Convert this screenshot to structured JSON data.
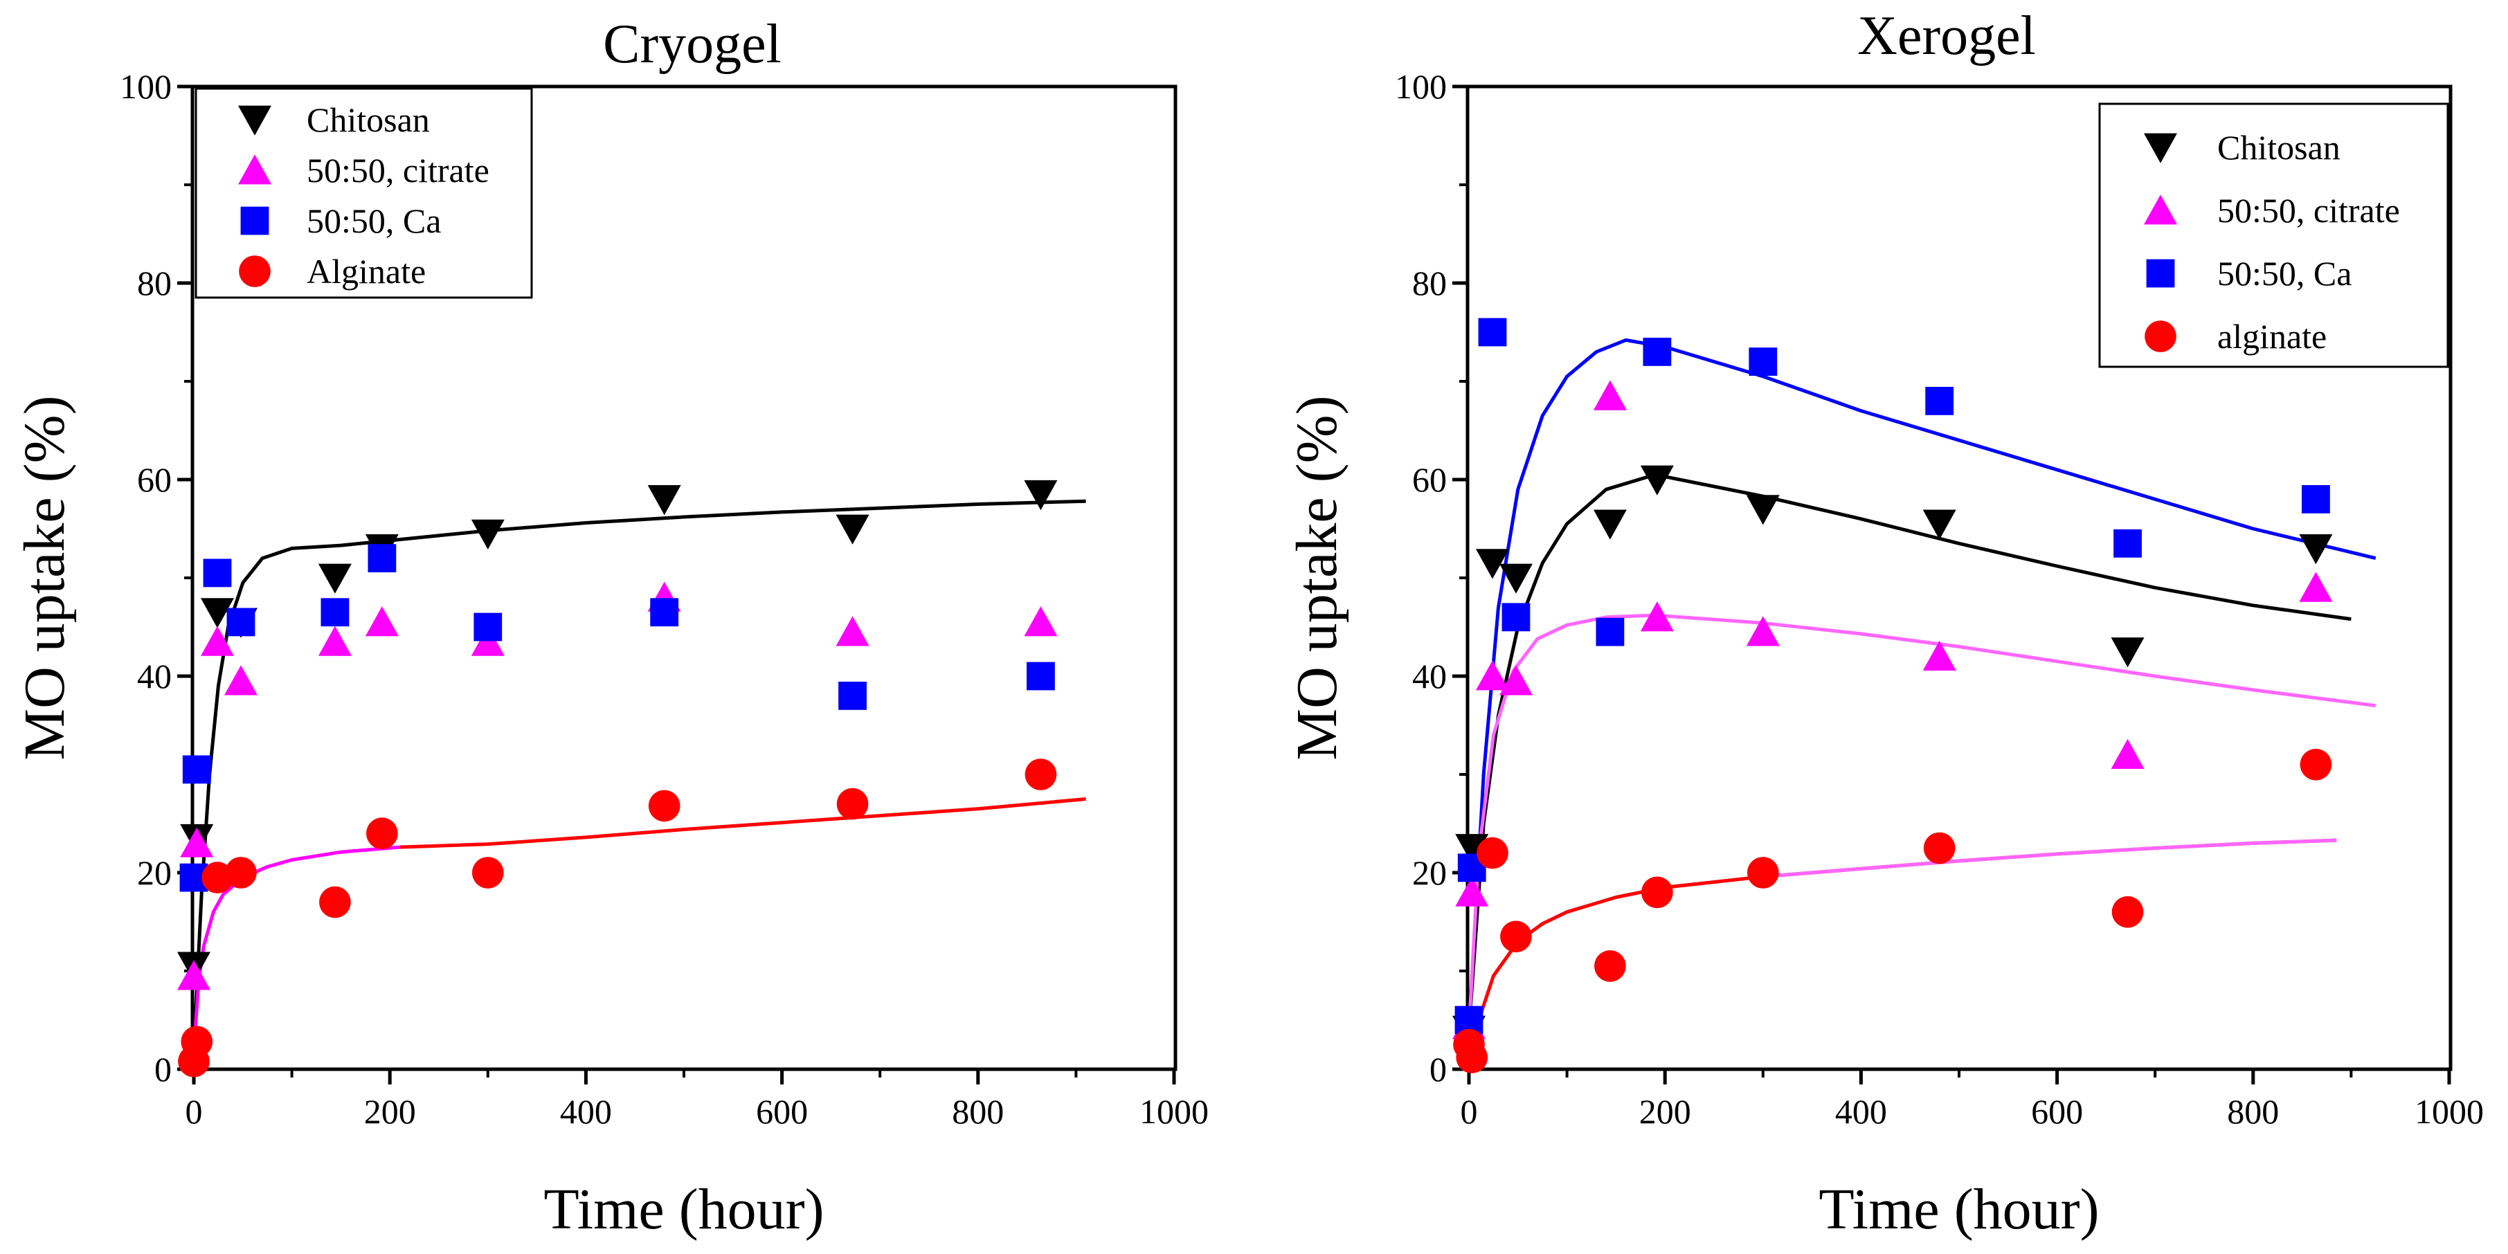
{
  "chart_data": [
    {
      "type": "scatter",
      "title": "Cryogel",
      "xlabel": "Time (hour)",
      "ylabel": "MO uptake (%)",
      "xlim": [
        0,
        1000
      ],
      "ylim": [
        0,
        100
      ],
      "xticks": [
        "0",
        "200",
        "400",
        "600",
        "800",
        "1000"
      ],
      "yticks": [
        "0",
        "20",
        "40",
        "60",
        "80",
        "100"
      ],
      "legend_position": "top-left",
      "series": [
        {
          "name": "Chitosan",
          "marker": "triangle-down",
          "color": "#000000",
          "x": [
            0,
            3,
            24,
            48,
            144,
            192,
            300,
            480,
            672,
            864
          ],
          "y": [
            10.5,
            23.5,
            46.5,
            45.5,
            50,
            53,
            54.5,
            58,
            55,
            58.5
          ]
        },
        {
          "name": "50:50, citrate",
          "marker": "triangle-up",
          "color": "#ff00ff",
          "x": [
            0,
            3,
            24,
            48,
            144,
            192,
            300,
            480,
            672,
            864
          ],
          "y": [
            9.5,
            23,
            43.5,
            39.5,
            43.5,
            45.5,
            43.5,
            48,
            44.5,
            45.5
          ]
        },
        {
          "name": "50:50, Ca",
          "marker": "square",
          "color": "#0000ff",
          "x": [
            0,
            3,
            24,
            48,
            144,
            192,
            300,
            480,
            672,
            864
          ],
          "y": [
            19.5,
            30.5,
            50.5,
            45.5,
            46.5,
            52,
            45,
            46.5,
            38,
            40
          ]
        },
        {
          "name": "Alginate",
          "marker": "circle",
          "color": "#ff0000",
          "x": [
            0,
            3,
            24,
            48,
            144,
            192,
            300,
            480,
            672,
            864
          ],
          "y": [
            0.8,
            2.8,
            19.5,
            20,
            17,
            24,
            20,
            26.8,
            27,
            30
          ]
        }
      ],
      "fit_lines": [
        {
          "series": "Chitosan",
          "color": "#000000",
          "x": [
            0,
            8,
            16,
            25,
            35,
            50,
            70,
            100,
            150,
            200,
            300,
            400,
            500,
            600,
            700,
            800,
            910
          ],
          "y": [
            2,
            18,
            30,
            39,
            45,
            49.5,
            52,
            53,
            53.3,
            53.8,
            54.8,
            55.6,
            56.2,
            56.7,
            57.1,
            57.5,
            57.8
          ]
        },
        {
          "series": "50:50, citrate",
          "color": "#ff00ff",
          "x": [
            0,
            5,
            10,
            20,
            30,
            50,
            75,
            100,
            150,
            210
          ],
          "y": [
            2,
            9,
            12.5,
            16,
            17.8,
            19.5,
            20.6,
            21.3,
            22.1,
            22.6
          ]
        },
        {
          "series": "Alginate",
          "color": "#ff0000",
          "x": [
            210,
            300,
            400,
            500,
            600,
            700,
            800,
            910
          ],
          "y": [
            22.6,
            22.9,
            23.6,
            24.4,
            25.1,
            25.8,
            26.5,
            27.5
          ]
        }
      ]
    },
    {
      "type": "scatter",
      "title": "Xerogel",
      "xlabel": "Time (hour)",
      "ylabel": "MO uptake (%)",
      "xlim": [
        0,
        1000
      ],
      "ylim": [
        0,
        100
      ],
      "xticks": [
        "0",
        "200",
        "400",
        "600",
        "800",
        "1000"
      ],
      "yticks": [
        "0",
        "20",
        "40",
        "60",
        "80",
        "100"
      ],
      "legend_position": "top-right",
      "series": [
        {
          "name": "Chitosan",
          "marker": "triangle-down",
          "color": "#000000",
          "x": [
            0,
            3,
            24,
            48,
            144,
            192,
            300,
            480,
            672,
            864
          ],
          "y": [
            4,
            22.5,
            51.5,
            50,
            55.5,
            60,
            57,
            55.5,
            42.5,
            53
          ]
        },
        {
          "name": "50:50, citrate",
          "marker": "triangle-up",
          "color": "#ff00ff",
          "x": [
            0,
            3,
            24,
            48,
            144,
            192,
            300,
            480,
            672,
            864
          ],
          "y": [
            4.5,
            18,
            40,
            39.5,
            68.5,
            46,
            44.5,
            42,
            32,
            49
          ]
        },
        {
          "name": "50:50, Ca",
          "marker": "square",
          "color": "#0000ff",
          "x": [
            0,
            3,
            24,
            48,
            144,
            192,
            300,
            480,
            672,
            864
          ],
          "y": [
            5,
            20.5,
            75,
            46,
            44.5,
            73,
            72,
            68,
            53.5,
            58
          ]
        },
        {
          "name": "alginate",
          "marker": "circle",
          "color": "#ff0000",
          "x": [
            0,
            3,
            24,
            48,
            144,
            192,
            300,
            480,
            672,
            864
          ],
          "y": [
            2.5,
            1.2,
            22,
            13.5,
            10.5,
            18,
            20,
            22.5,
            16,
            31
          ]
        }
      ],
      "fit_lines": [
        {
          "series": "50:50, Ca",
          "color": "#0000ff",
          "x": [
            0,
            15,
            30,
            50,
            75,
            100,
            130,
            160,
            200,
            300,
            400,
            500,
            600,
            700,
            800,
            925
          ],
          "y": [
            4,
            30,
            47,
            59,
            66.5,
            70.5,
            73,
            74.2,
            73.5,
            70.5,
            67,
            64,
            61,
            58,
            55,
            52
          ]
        },
        {
          "series": "Chitosan",
          "color": "#000000",
          "x": [
            0,
            15,
            30,
            50,
            75,
            100,
            140,
            190,
            300,
            400,
            500,
            600,
            700,
            800,
            900
          ],
          "y": [
            4,
            25,
            36,
            45,
            51.5,
            55.5,
            59,
            60.5,
            58.3,
            56,
            53.5,
            51.2,
            49,
            47.2,
            45.8
          ]
        },
        {
          "series": "50:50, citrate",
          "color": "#ff66ff",
          "x": [
            0,
            10,
            25,
            45,
            70,
            100,
            140,
            190,
            300,
            400,
            500,
            600,
            700,
            800,
            925
          ],
          "y": [
            4,
            22,
            34,
            40.5,
            43.8,
            45.2,
            46,
            46.2,
            45.4,
            44.3,
            43,
            41.5,
            40,
            38.6,
            37
          ]
        },
        {
          "series": "alginate",
          "color": "#ff0000",
          "x": [
            0,
            10,
            25,
            50,
            75,
            100,
            150,
            200,
            300,
            400,
            500,
            600,
            700,
            800,
            885
          ],
          "y": [
            0.5,
            5,
            9.5,
            13,
            14.8,
            16,
            17.5,
            18.5,
            19.6,
            20.4,
            21.2,
            21.9,
            22.5,
            23,
            23.3
          ]
        },
        {
          "series": "alginate-overlay",
          "color": "#ff66ff",
          "x": [
            300,
            400,
            500,
            600,
            700,
            800,
            885
          ],
          "y": [
            19.6,
            20.4,
            21.2,
            21.9,
            22.5,
            23,
            23.3
          ]
        }
      ]
    }
  ]
}
